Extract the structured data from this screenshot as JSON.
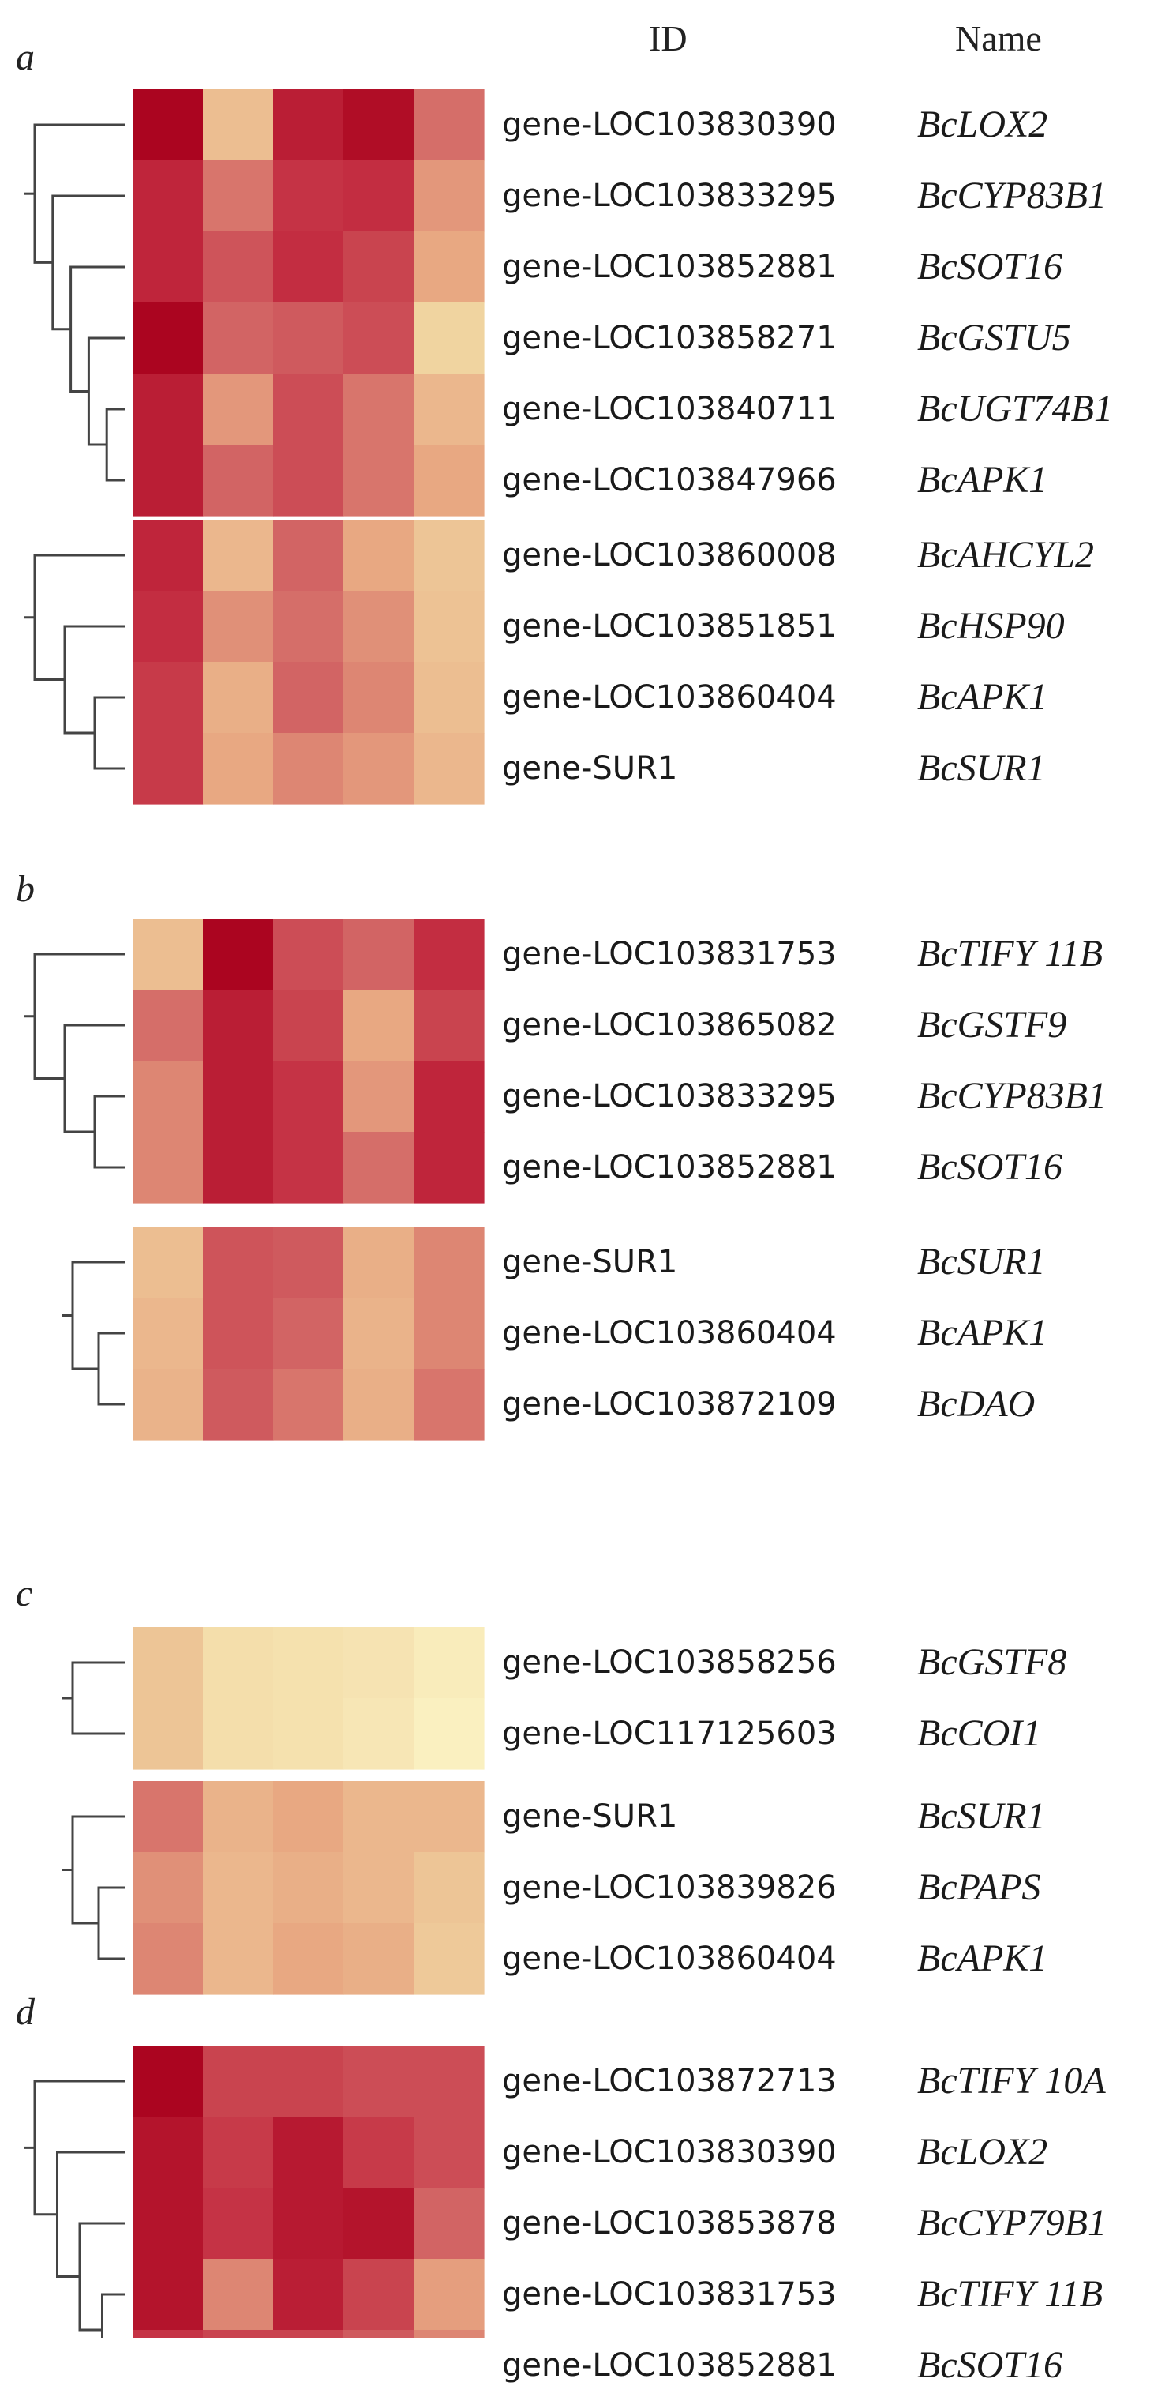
{
  "headers": {
    "id": "ID",
    "name": "Name"
  },
  "chart_data": {
    "type": "heatmap",
    "title": "",
    "color_scale": {
      "low": "#fdf6c8",
      "high": "#a8001c",
      "note": "expression level, light yellow (low) to dark red (high)"
    },
    "columns": 5,
    "panels": [
      {
        "label": "a",
        "blocks": [
          {
            "rows": [
              {
                "id": "gene-LOC103830390",
                "name": "BcLOX2",
                "values": [
                  0.98,
                  0.35,
                  0.88,
                  0.95,
                  0.62
                ]
              },
              {
                "id": "gene-LOC103833295",
                "name": "BcCYP83B1",
                "values": [
                  0.85,
                  0.6,
                  0.8,
                  0.82,
                  0.5
                ]
              },
              {
                "id": "gene-LOC103852881",
                "name": "BcSOT16",
                "values": [
                  0.85,
                  0.7,
                  0.82,
                  0.75,
                  0.45
                ]
              },
              {
                "id": "gene-LOC103858271",
                "name": "BcGSTU5",
                "values": [
                  0.98,
                  0.65,
                  0.68,
                  0.72,
                  0.25
                ]
              },
              {
                "id": "gene-LOC103840711",
                "name": "BcUGT74B1",
                "values": [
                  0.88,
                  0.5,
                  0.72,
                  0.6,
                  0.38
                ]
              },
              {
                "id": "gene-LOC103847966",
                "name": "BcAPK1",
                "values": [
                  0.88,
                  0.65,
                  0.72,
                  0.6,
                  0.45
                ]
              }
            ]
          },
          {
            "rows": [
              {
                "id": "gene-LOC103860008",
                "name": "BcAHCYL2",
                "values": [
                  0.85,
                  0.38,
                  0.65,
                  0.45,
                  0.32
                ]
              },
              {
                "id": "gene-LOC103851851",
                "name": "BcHSP90",
                "values": [
                  0.82,
                  0.52,
                  0.62,
                  0.52,
                  0.33
                ]
              },
              {
                "id": "gene-LOC103860404",
                "name": "BcAPK1",
                "values": [
                  0.78,
                  0.42,
                  0.65,
                  0.55,
                  0.35
                ]
              },
              {
                "id": "gene-SUR1",
                "name": "BcSUR1",
                "values": [
                  0.78,
                  0.45,
                  0.55,
                  0.5,
                  0.38
                ]
              }
            ]
          }
        ]
      },
      {
        "label": "b",
        "blocks": [
          {
            "rows": [
              {
                "id": "gene-LOC103831753",
                "name": "BcTIFY 11B",
                "values": [
                  0.35,
                  0.98,
                  0.72,
                  0.65,
                  0.82
                ]
              },
              {
                "id": "gene-LOC103865082",
                "name": "BcGSTF9",
                "values": [
                  0.62,
                  0.88,
                  0.75,
                  0.45,
                  0.75
                ]
              },
              {
                "id": "gene-LOC103833295",
                "name": "BcCYP83B1",
                "values": [
                  0.55,
                  0.88,
                  0.8,
                  0.5,
                  0.85
                ]
              },
              {
                "id": "gene-LOC103852881",
                "name": "BcSOT16",
                "values": [
                  0.55,
                  0.88,
                  0.8,
                  0.62,
                  0.85
                ]
              }
            ]
          },
          {
            "rows": [
              {
                "id": "gene-SUR1",
                "name": "BcSUR1",
                "values": [
                  0.35,
                  0.7,
                  0.68,
                  0.42,
                  0.55
                ]
              },
              {
                "id": "gene-LOC103860404",
                "name": "BcAPK1",
                "values": [
                  0.38,
                  0.7,
                  0.65,
                  0.4,
                  0.55
                ]
              },
              {
                "id": "gene-LOC103872109",
                "name": "BcDAO",
                "values": [
                  0.4,
                  0.68,
                  0.6,
                  0.42,
                  0.6
                ]
              }
            ]
          }
        ]
      },
      {
        "label": "c",
        "blocks": [
          {
            "rows": [
              {
                "id": "gene-LOC103858256",
                "name": "BcGSTF8",
                "values": [
                  0.32,
                  0.18,
                  0.16,
                  0.14,
                  0.08
                ]
              },
              {
                "id": "gene-LOC117125603",
                "name": "BcCOI1",
                "values": [
                  0.32,
                  0.18,
                  0.16,
                  0.12,
                  0.05
                ]
              }
            ]
          },
          {
            "rows": [
              {
                "id": "gene-SUR1",
                "name": "BcSUR1",
                "values": [
                  0.6,
                  0.4,
                  0.45,
                  0.38,
                  0.38
                ]
              },
              {
                "id": "gene-LOC103839826",
                "name": "BcPAPS",
                "values": [
                  0.52,
                  0.38,
                  0.42,
                  0.38,
                  0.32
                ]
              },
              {
                "id": "gene-LOC103860404",
                "name": "BcAPK1",
                "values": [
                  0.55,
                  0.38,
                  0.45,
                  0.42,
                  0.3
                ]
              }
            ]
          }
        ]
      },
      {
        "label": "d",
        "blocks": [
          {
            "rows": [
              {
                "id": "gene-LOC103872713",
                "name": "BcTIFY 10A",
                "values": [
                  0.98,
                  0.75,
                  0.75,
                  0.72,
                  0.72
                ]
              },
              {
                "id": "gene-LOC103830390",
                "name": "BcLOX2",
                "values": [
                  0.92,
                  0.78,
                  0.9,
                  0.78,
                  0.72
                ]
              },
              {
                "id": "gene-LOC103853878",
                "name": "BcCYP79B1",
                "values": [
                  0.92,
                  0.8,
                  0.9,
                  0.92,
                  0.65
                ]
              },
              {
                "id": "gene-LOC103831753",
                "name": "BcTIFY 11B",
                "values": [
                  0.92,
                  0.55,
                  0.88,
                  0.75,
                  0.48
                ]
              },
              {
                "id": "gene-LOC103852881",
                "name": "BcSOT16",
                "values": [
                  0.8,
                  0.75,
                  0.75,
                  0.68,
                  0.55
                ]
              }
            ]
          }
        ]
      }
    ]
  }
}
